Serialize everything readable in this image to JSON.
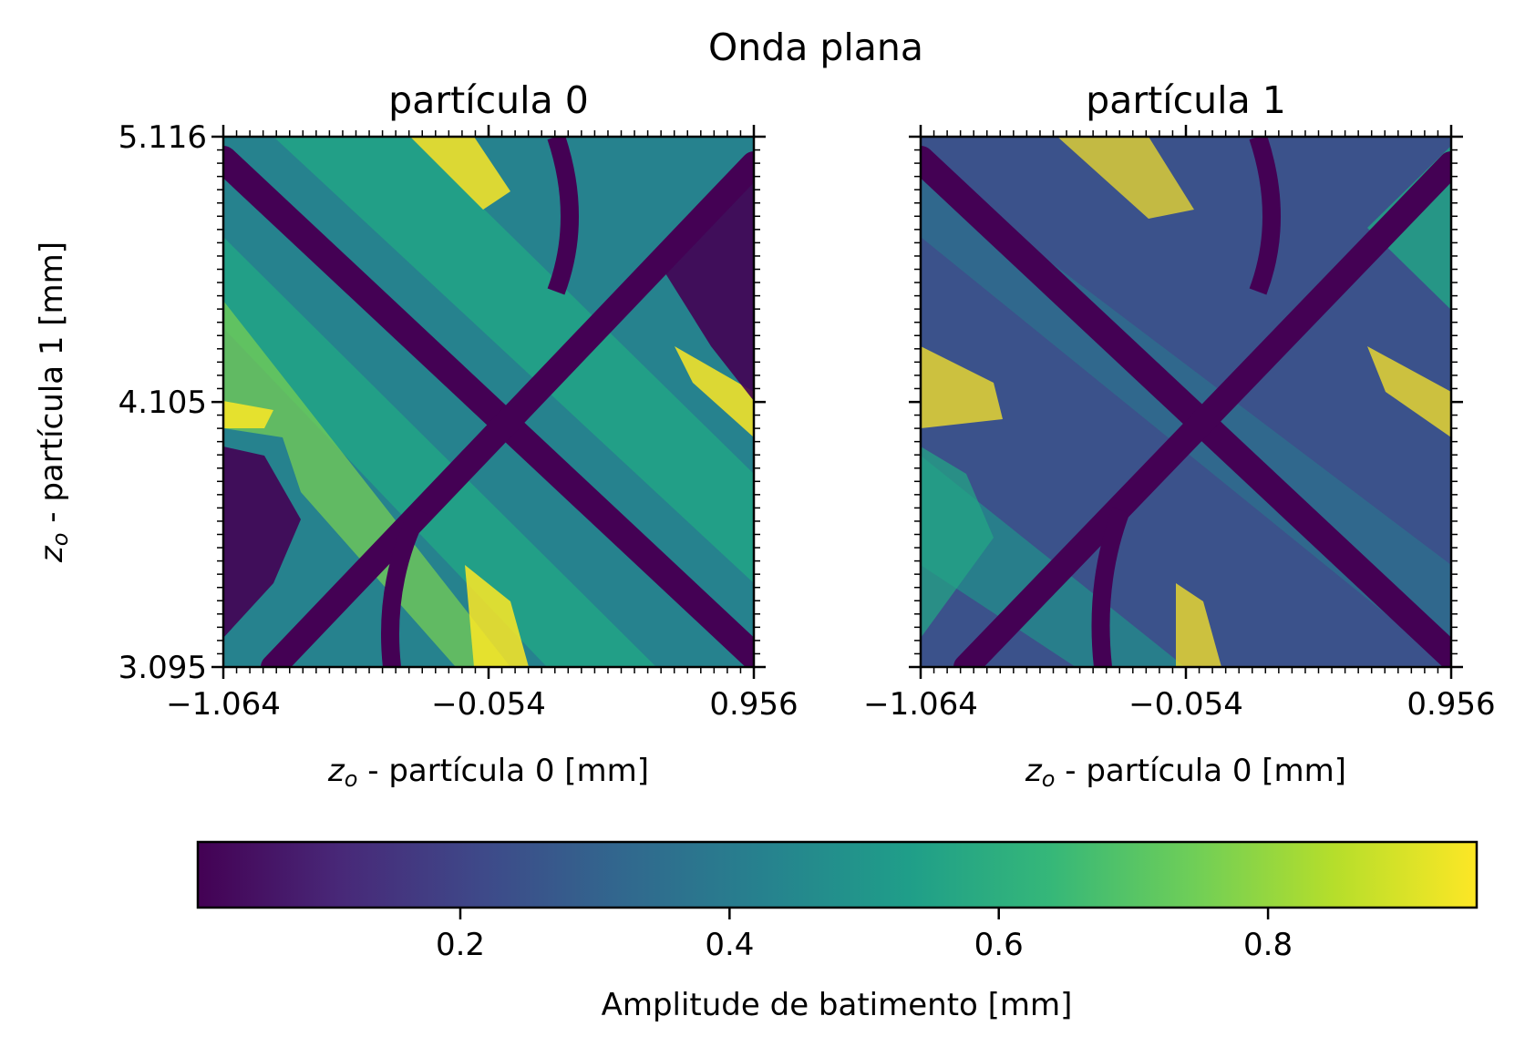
{
  "figure": {
    "suptitle": "Onda plana"
  },
  "chart_data": [
    {
      "type": "heatmap",
      "title": "partícula 0",
      "xlabel_sym": "z",
      "xlabel_sub": "o",
      "xlabel_text": " - partícula 0 [mm]",
      "ylabel_sym": "z",
      "ylabel_sub": "o",
      "ylabel_text": " - partícula 1 [mm]",
      "xlim": [
        -1.064,
        0.956
      ],
      "ylim": [
        3.095,
        5.116
      ],
      "xticks": [
        -1.064,
        -0.054,
        0.956
      ],
      "xtick_labels": [
        "−1.064",
        "−0.054",
        "0.956"
      ],
      "yticks": [
        3.095,
        4.105,
        5.116
      ],
      "ytick_labels": [
        "3.095",
        "4.105",
        "5.116"
      ],
      "colormap": "viridis"
    },
    {
      "type": "heatmap",
      "title": "partícula 1",
      "xlabel_sym": "z",
      "xlabel_sub": "o",
      "xlabel_text": " - partícula 0 [mm]",
      "xlim": [
        -1.064,
        0.956
      ],
      "ylim": [
        3.095,
        5.116
      ],
      "xticks": [
        -1.064,
        -0.054,
        0.956
      ],
      "xtick_labels": [
        "−1.064",
        "−0.054",
        "0.956"
      ],
      "colormap": "viridis"
    }
  ],
  "colorbar": {
    "label": "Amplitude de batimento [mm]",
    "min": 0.005,
    "max": 0.955,
    "ticks": [
      0.2,
      0.4,
      0.6,
      0.8
    ],
    "tick_labels": [
      "0.2",
      "0.4",
      "0.6",
      "0.8"
    ],
    "colors": [
      "#440154",
      "#482878",
      "#3e4989",
      "#31688e",
      "#26828e",
      "#1f9e89",
      "#35b779",
      "#6ece58",
      "#b5de2b",
      "#fde725"
    ]
  }
}
